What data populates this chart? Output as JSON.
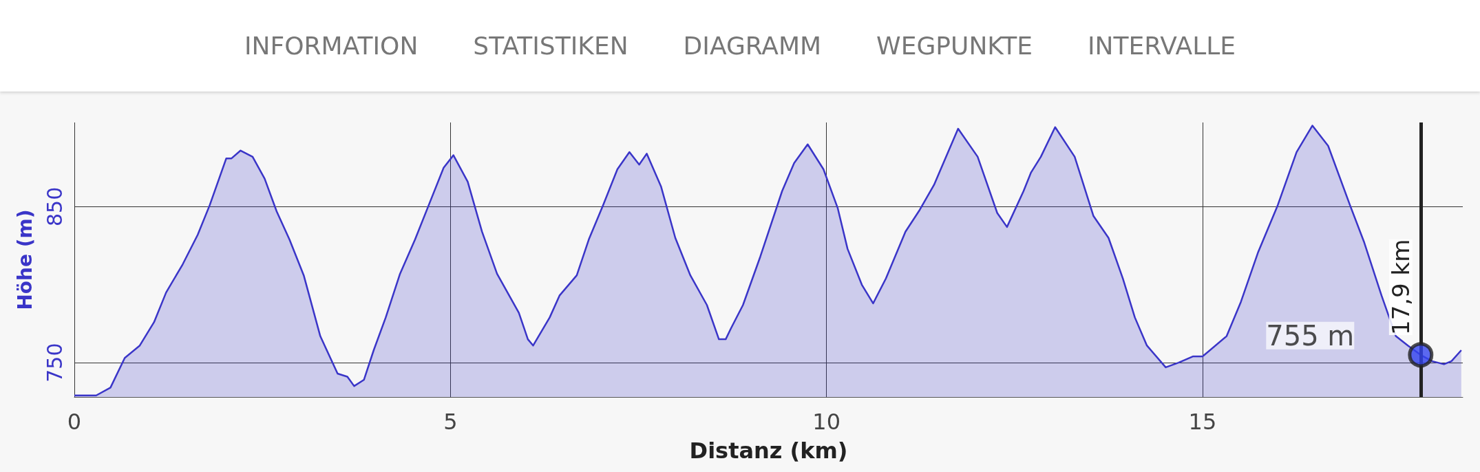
{
  "chart_data": {
    "type": "area",
    "xlabel": "Distanz (km)",
    "ylabel": "Höhe (m)",
    "x": [
      0,
      0.29,
      0.48,
      0.67,
      0.87,
      1.06,
      1.22,
      1.44,
      1.64,
      1.8,
      2.02,
      2.09,
      2.21,
      2.37,
      2.53,
      2.69,
      2.86,
      3.05,
      3.27,
      3.5,
      3.63,
      3.72,
      3.85,
      3.98,
      4.14,
      4.33,
      4.53,
      4.72,
      4.91,
      5.04,
      5.23,
      5.42,
      5.62,
      5.91,
      6.03,
      6.1,
      6.32,
      6.45,
      6.68,
      6.84,
      7.03,
      7.22,
      7.38,
      7.51,
      7.61,
      7.8,
      7.99,
      8.19,
      8.41,
      8.57,
      8.66,
      8.73,
      8.89,
      9.12,
      9.41,
      9.57,
      9.75,
      9.96,
      10.15,
      10.28,
      10.47,
      10.62,
      10.79,
      11.05,
      11.24,
      11.43,
      11.75,
      12.01,
      12.27,
      12.4,
      12.62,
      12.72,
      12.85,
      13.04,
      13.3,
      13.55,
      13.75,
      13.94,
      14.1,
      14.26,
      14.51,
      14.68,
      14.87,
      15,
      15.32,
      15.51,
      15.74,
      16,
      16.25,
      16.46,
      16.67,
      16.96,
      17.15,
      17.38,
      17.57,
      17.73,
      17.9,
      18.05,
      18.21,
      18.31,
      18.44
    ],
    "series": [
      {
        "color": "#3a35c8",
        "values": [
          729,
          729,
          734,
          753,
          761,
          776,
          795,
          813,
          832,
          851,
          881,
          881,
          886,
          882,
          868,
          847,
          829,
          806,
          767,
          743,
          741,
          735,
          739,
          758,
          779,
          807,
          829,
          852,
          875,
          883,
          866,
          834,
          807,
          782,
          765,
          761,
          779,
          793,
          806,
          829,
          851,
          874,
          885,
          877,
          884,
          863,
          830,
          806,
          787,
          765,
          765,
          772,
          787,
          818,
          860,
          878,
          890,
          874,
          849,
          823,
          800,
          788,
          804,
          834,
          848,
          864,
          900,
          882,
          846,
          837,
          860,
          872,
          882,
          901,
          882,
          844,
          830,
          804,
          779,
          761,
          747,
          750,
          754,
          754,
          767,
          789,
          821,
          851,
          885,
          902,
          889,
          851,
          827,
          793,
          767,
          761,
          755,
          751,
          749,
          751,
          758
        ]
      }
    ],
    "xlim": [
      0,
      18.46
    ],
    "xticks": [
      0,
      5,
      10,
      15
    ],
    "ylim": [
      728,
      904
    ],
    "yticks": [
      750,
      850
    ],
    "grid": true,
    "ref_lines": [
      {
        "axis": "x",
        "value": 17.9,
        "label": "17,9 km",
        "color": "#222222"
      }
    ],
    "annotations": [
      "INFORMATION",
      "STATISTIKEN",
      "DIAGRAMM",
      "WEGPUNKTE",
      "INTERVALLE",
      {
        "text": "755 m",
        "x": 17.9,
        "y": 755
      }
    ]
  }
}
